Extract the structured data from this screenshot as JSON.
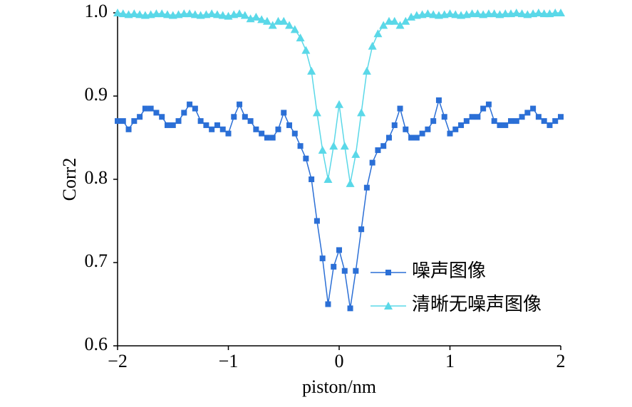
{
  "chart_data": {
    "type": "line",
    "xlabel": "piston/nm",
    "ylabel": "Corr2",
    "x": [
      -2.0,
      -1.95,
      -1.9,
      -1.85,
      -1.8,
      -1.75,
      -1.7,
      -1.65,
      -1.6,
      -1.55,
      -1.5,
      -1.45,
      -1.4,
      -1.35,
      -1.3,
      -1.25,
      -1.2,
      -1.15,
      -1.1,
      -1.05,
      -1.0,
      -0.95,
      -0.9,
      -0.85,
      -0.8,
      -0.75,
      -0.7,
      -0.65,
      -0.6,
      -0.55,
      -0.5,
      -0.45,
      -0.4,
      -0.35,
      -0.3,
      -0.25,
      -0.2,
      -0.15,
      -0.1,
      -0.05,
      0.0,
      0.05,
      0.1,
      0.15,
      0.2,
      0.25,
      0.3,
      0.35,
      0.4,
      0.45,
      0.5,
      0.55,
      0.6,
      0.65,
      0.7,
      0.75,
      0.8,
      0.85,
      0.9,
      0.95,
      1.0,
      1.05,
      1.1,
      1.15,
      1.2,
      1.25,
      1.3,
      1.35,
      1.4,
      1.45,
      1.5,
      1.55,
      1.6,
      1.65,
      1.7,
      1.75,
      1.8,
      1.85,
      1.9,
      1.95,
      2.0
    ],
    "series": [
      {
        "name": "噪声图像",
        "color": "#2b6fd6",
        "marker": "square",
        "values": [
          0.87,
          0.87,
          0.86,
          0.87,
          0.875,
          0.885,
          0.885,
          0.88,
          0.875,
          0.865,
          0.865,
          0.87,
          0.88,
          0.89,
          0.885,
          0.87,
          0.865,
          0.86,
          0.865,
          0.86,
          0.855,
          0.875,
          0.89,
          0.875,
          0.87,
          0.86,
          0.855,
          0.85,
          0.85,
          0.86,
          0.88,
          0.865,
          0.855,
          0.84,
          0.825,
          0.8,
          0.75,
          0.705,
          0.65,
          0.695,
          0.715,
          0.69,
          0.645,
          0.69,
          0.74,
          0.79,
          0.82,
          0.835,
          0.84,
          0.85,
          0.865,
          0.885,
          0.86,
          0.85,
          0.85,
          0.855,
          0.86,
          0.87,
          0.895,
          0.875,
          0.855,
          0.86,
          0.865,
          0.87,
          0.875,
          0.875,
          0.885,
          0.89,
          0.87,
          0.865,
          0.865,
          0.87,
          0.87,
          0.875,
          0.88,
          0.885,
          0.875,
          0.87,
          0.865,
          0.87,
          0.875
        ]
      },
      {
        "name": "清晰无噪声图像",
        "color": "#5ad8e8",
        "marker": "triangle",
        "values": [
          1.0,
          0.999,
          0.998,
          0.999,
          0.998,
          0.997,
          0.998,
          0.999,
          0.999,
          0.998,
          0.997,
          0.998,
          0.999,
          0.999,
          0.998,
          0.997,
          0.998,
          0.999,
          0.998,
          0.997,
          0.996,
          0.998,
          0.999,
          0.997,
          0.993,
          0.995,
          0.992,
          0.99,
          0.985,
          0.99,
          0.99,
          0.985,
          0.98,
          0.97,
          0.955,
          0.93,
          0.88,
          0.835,
          0.8,
          0.84,
          0.89,
          0.84,
          0.795,
          0.83,
          0.88,
          0.93,
          0.96,
          0.975,
          0.985,
          0.99,
          0.99,
          0.985,
          0.99,
          0.995,
          0.997,
          0.998,
          0.999,
          0.998,
          0.997,
          0.998,
          0.999,
          0.998,
          0.997,
          0.998,
          0.999,
          0.999,
          0.998,
          0.999,
          0.999,
          0.998,
          0.999,
          0.999,
          1.0,
          0.999,
          0.998,
          0.999,
          1.0,
          0.999,
          0.999,
          1.0,
          1.0
        ]
      }
    ],
    "xlim": [
      -2,
      2
    ],
    "ylim": [
      0.6,
      1.0
    ],
    "xticks": [
      {
        "value": -2,
        "label": "−2"
      },
      {
        "value": -1,
        "label": "−1"
      },
      0,
      1,
      2
    ],
    "yticks": [
      0.6,
      0.7,
      0.8,
      0.9,
      {
        "value": 1.0,
        "label": "1.0"
      }
    ],
    "legend": "lower right"
  }
}
